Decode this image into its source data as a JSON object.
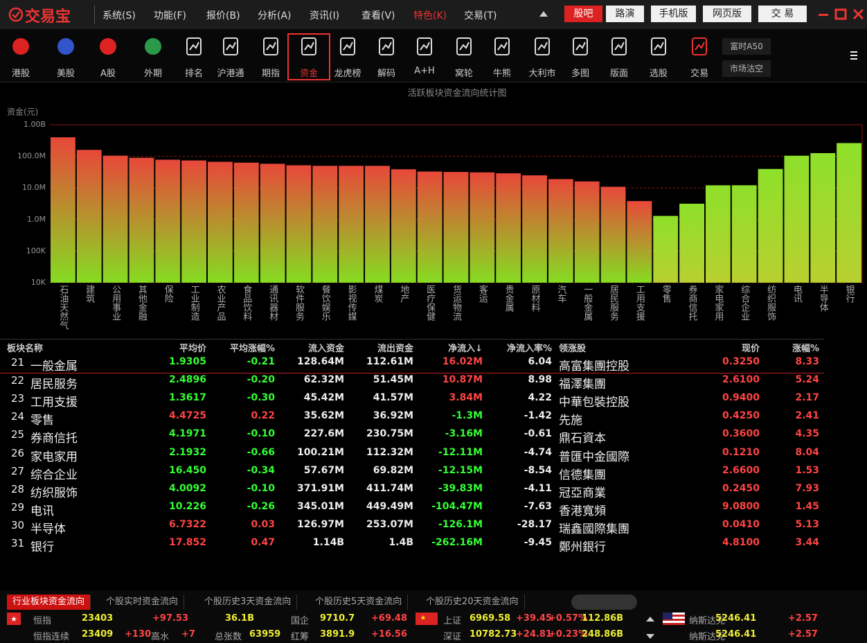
{
  "menu": {
    "logo": "交易宝",
    "items": [
      "系统(S)",
      "功能(F)",
      "报价(B)",
      "分析(A)",
      "资讯(I)",
      "查看(V)",
      "特色(K)",
      "交易(T)"
    ],
    "buttons": [
      "股吧",
      "路演",
      "手机版",
      "网页版",
      "交 易"
    ]
  },
  "toolbar": {
    "items": [
      "港股",
      "美股",
      "A股",
      "外期",
      "排名",
      "沪港通",
      "期指",
      "资金",
      "龙虎榜",
      "解码",
      "A+H",
      "窝轮",
      "牛熊",
      "大利市",
      "多图",
      "版面",
      "选股",
      "交易"
    ],
    "side": [
      "富时A50",
      "市场沽空"
    ]
  },
  "chart_data": {
    "type": "bar",
    "title": "活跃板块资金流向统计图",
    "y_label": "资金(元)",
    "log_scale": true,
    "grid": true,
    "categories": [
      "石油天然气",
      "建筑",
      "公用事业",
      "其他金融",
      "保险",
      "工业制造",
      "农业产品",
      "食品饮料",
      "通讯器材",
      "软件服务",
      "餐饮娱乐",
      "影视传媒",
      "煤炭",
      "地产",
      "医疗保健",
      "货运物流",
      "客运",
      "贵金属",
      "原材料",
      "汽车",
      "一般金属",
      "居民服务",
      "工用支援",
      "零售",
      "券商信托",
      "家电家用",
      "综合企业",
      "纺织服饰",
      "电讯",
      "半导体",
      "银行"
    ],
    "values": [
      400000000,
      160000000,
      105000000,
      90000000,
      78000000,
      74000000,
      67000000,
      63000000,
      58000000,
      52000000,
      50000000,
      50000000,
      50000000,
      39000000,
      33000000,
      32000000,
      31000000,
      29000000,
      25000000,
      19000000,
      16020000,
      10870000,
      3840000,
      1300000,
      3160000,
      12110000,
      12150000,
      39830000,
      104470000,
      126100000,
      262160000
    ],
    "colors": [
      [
        "#e8483a",
        "#86dc22"
      ],
      [
        "#e8483a",
        "#86dc22"
      ],
      [
        "#e8483a",
        "#86dc22"
      ],
      [
        "#e8483a",
        "#86dc22"
      ],
      [
        "#e8483a",
        "#86dc22"
      ],
      [
        "#e8483a",
        "#86dc22"
      ],
      [
        "#e8483a",
        "#86dc22"
      ],
      [
        "#e8483a",
        "#86dc22"
      ],
      [
        "#e8483a",
        "#86dc22"
      ],
      [
        "#e8483a",
        "#86dc22"
      ],
      [
        "#e8483a",
        "#86dc22"
      ],
      [
        "#e8483a",
        "#86dc22"
      ],
      [
        "#e8483a",
        "#86dc22"
      ],
      [
        "#e8483a",
        "#86dc22"
      ],
      [
        "#e8483a",
        "#86dc22"
      ],
      [
        "#e8483a",
        "#86dc22"
      ],
      [
        "#e8483a",
        "#86dc22"
      ],
      [
        "#e8483a",
        "#86dc22"
      ],
      [
        "#e8483a",
        "#86dc22"
      ],
      [
        "#e8483a",
        "#86dc22"
      ],
      [
        "#e8483a",
        "#86dc22"
      ],
      [
        "#e8483a",
        "#86dc22"
      ],
      [
        "#e8483a",
        "#86dc22"
      ],
      [
        "#8ee02a",
        "#b8d030"
      ],
      [
        "#8ee02a",
        "#b8d030"
      ],
      [
        "#8ee02a",
        "#b8d030"
      ],
      [
        "#8ee02a",
        "#b8d030"
      ],
      [
        "#8ee02a",
        "#b8d030"
      ],
      [
        "#8ee02a",
        "#b8d030"
      ],
      [
        "#8ee02a",
        "#b8d030"
      ],
      [
        "#8ee02a",
        "#b8d030"
      ]
    ],
    "ylim": [
      10000,
      1000000000
    ],
    "yticks": [
      {
        "value": 10000,
        "label": "10K"
      },
      {
        "value": 100000,
        "label": "100K"
      },
      {
        "value": 1000000,
        "label": "1.0M"
      },
      {
        "value": 10000000,
        "label": "10.0M"
      },
      {
        "value": 100000000,
        "label": "100.0M"
      },
      {
        "value": 1000000000,
        "label": "1.00B"
      }
    ]
  },
  "table": {
    "columns": [
      "板块名称",
      "平均价",
      "平均涨幅%",
      "流入资金",
      "流出资金",
      "净流入↓",
      "净流入率%",
      "领涨股",
      "现价",
      "涨幅%"
    ],
    "rows": [
      [
        "21",
        "一般金属",
        "1.9305",
        "-0.21",
        "128.64M",
        "112.61M",
        "16.02M",
        "6.04",
        "高富集團控股",
        "0.3250",
        "8.33"
      ],
      [
        "22",
        "居民服务",
        "2.4896",
        "-0.20",
        "62.32M",
        "51.45M",
        "10.87M",
        "8.98",
        "福澤集團",
        "2.6100",
        "5.24"
      ],
      [
        "23",
        "工用支援",
        "1.3617",
        "-0.30",
        "45.42M",
        "41.57M",
        "3.84M",
        "4.22",
        "中華包裝控股",
        "0.9400",
        "2.17"
      ],
      [
        "24",
        "零售",
        "4.4725",
        "0.22",
        "35.62M",
        "36.92M",
        "-1.3M",
        "-1.42",
        "先施",
        "0.4250",
        "2.41"
      ],
      [
        "25",
        "券商信托",
        "4.1971",
        "-0.10",
        "227.6M",
        "230.75M",
        "-3.16M",
        "-0.61",
        "鼎石資本",
        "0.3600",
        "4.35"
      ],
      [
        "26",
        "家电家用",
        "2.1932",
        "-0.66",
        "100.21M",
        "112.32M",
        "-12.11M",
        "-4.74",
        "普匯中金國際",
        "0.1210",
        "8.04"
      ],
      [
        "27",
        "综合企业",
        "16.450",
        "-0.34",
        "57.67M",
        "69.82M",
        "-12.15M",
        "-8.54",
        "信德集團",
        "2.6600",
        "1.53"
      ],
      [
        "28",
        "纺织服饰",
        "4.0092",
        "-0.10",
        "371.91M",
        "411.74M",
        "-39.83M",
        "-4.11",
        "冠亞商業",
        "0.2450",
        "7.93"
      ],
      [
        "29",
        "电讯",
        "10.226",
        "-0.26",
        "345.01M",
        "449.49M",
        "-104.47M",
        "-7.63",
        "香港寬頻",
        "9.0800",
        "1.45"
      ],
      [
        "30",
        "半导体",
        "6.7322",
        "0.03",
        "126.97M",
        "253.07M",
        "-126.1M",
        "-28.17",
        "瑞鑫國際集團",
        "0.0410",
        "5.13"
      ],
      [
        "31",
        "银行",
        "17.852",
        "0.47",
        "1.14B",
        "1.4B",
        "-262.16M",
        "-9.45",
        "鄭州銀行",
        "4.8100",
        "3.44"
      ]
    ]
  },
  "tabs": [
    "行业板块资金流向",
    "个股实时资金流向",
    "个股历史3天资金流向",
    "个股历史5天资金流向",
    "个股历史20天资金流向"
  ],
  "ticker": {
    "rows": [
      [
        "恒指",
        "23403",
        "+97.53",
        "36.1B",
        "国企",
        "9710.7",
        "+69.48",
        "上证",
        "6969.58",
        "+39.45",
        "+0.57%",
        "112.86B",
        "纳斯达克",
        "5246.41",
        "+2.57"
      ],
      [
        "恒指连续",
        "23409",
        "+130",
        "高水",
        "+7",
        "总张数",
        "63959",
        "红筹",
        "3891.9",
        "+16.56",
        "深证",
        "10782.73",
        "+24.81",
        "+0.23%",
        "248.86B",
        "纳斯达克",
        "5246.41",
        "+2.57"
      ]
    ]
  }
}
